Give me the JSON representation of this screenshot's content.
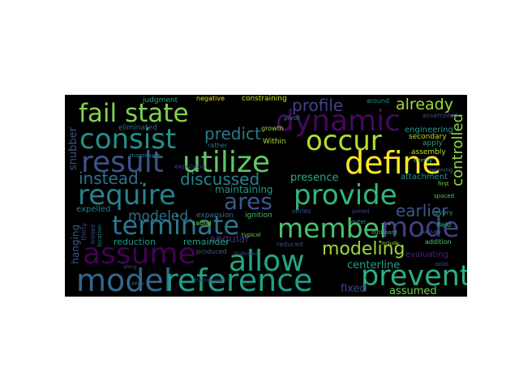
{
  "colors": {
    "page_background": "#ffffff",
    "cloud_background": "#000000"
  },
  "words": [
    {
      "text": "fail state",
      "color": "#7fd34e"
    },
    {
      "text": "dynamic",
      "color": "#46085c"
    },
    {
      "text": "consist",
      "color": "#21918c"
    },
    {
      "text": "occur",
      "color": "#b5de2b"
    },
    {
      "text": "result",
      "color": "#3b528b"
    },
    {
      "text": "utilize",
      "color": "#5ec962"
    },
    {
      "text": "define",
      "color": "#fde725"
    },
    {
      "text": "require",
      "color": "#26828e"
    },
    {
      "text": "provide",
      "color": "#35b779"
    },
    {
      "text": "terminate",
      "color": "#2a788e"
    },
    {
      "text": "member",
      "color": "#4ac16d"
    },
    {
      "text": "mode",
      "color": "#433e85"
    },
    {
      "text": "assume",
      "color": "#440154"
    },
    {
      "text": "allow",
      "color": "#22a884"
    },
    {
      "text": "model",
      "color": "#31688e"
    },
    {
      "text": "reference",
      "color": "#1f9e89"
    },
    {
      "text": "prevent",
      "color": "#2ab07f"
    },
    {
      "text": "ares",
      "color": "#39568c"
    },
    {
      "text": "modeling",
      "color": "#9fda3a"
    },
    {
      "text": "profile",
      "color": "#414487"
    },
    {
      "text": "already",
      "color": "#a0da39"
    },
    {
      "text": "predict",
      "color": "#287c8e"
    },
    {
      "text": "discussed",
      "color": "#25848e"
    },
    {
      "text": "instead.",
      "color": "#2c728e"
    },
    {
      "text": "earlier",
      "color": "#38598c"
    },
    {
      "text": "modeled.",
      "color": "#2d708e"
    },
    {
      "text": "controlled",
      "color": "#90d743"
    },
    {
      "text": "snubber",
      "color": "#3a548c"
    },
    {
      "text": "centerline",
      "color": "#1fa187"
    },
    {
      "text": "fixed",
      "color": "#3e4989"
    },
    {
      "text": "assumed",
      "color": "#6ccd5a"
    },
    {
      "text": "presence",
      "color": "#27ad81"
    },
    {
      "text": "angular",
      "color": "#482878"
    },
    {
      "text": "expelled",
      "color": "#26818e"
    },
    {
      "text": "reduction",
      "color": "#1e9b8a"
    },
    {
      "text": "remainder",
      "color": "#20a486"
    },
    {
      "text": "maintaining",
      "color": "#1f978b"
    },
    {
      "text": "hanging",
      "color": "#38588c"
    },
    {
      "text": "eliminated",
      "color": "#2f6c8e"
    },
    {
      "text": "expulsion",
      "color": "#433d84"
    },
    {
      "text": "expansion",
      "color": "#2b758e"
    },
    {
      "text": "ignition",
      "color": "#3dbc74"
    },
    {
      "text": "radial",
      "color": "#7ad151"
    },
    {
      "text": "attachment",
      "color": "#1f988b"
    },
    {
      "text": "engineering",
      "color": "#1e9c89"
    },
    {
      "text": "assembly",
      "color": "#bddf26"
    },
    {
      "text": "assembled",
      "color": "#3f4788"
    },
    {
      "text": "judgment",
      "color": "#22a785"
    },
    {
      "text": "negative",
      "color": "#dde318"
    },
    {
      "text": "constraining",
      "color": "#d2e21b"
    },
    {
      "text": "growth",
      "color": "#a2da37"
    },
    {
      "text": "pivot",
      "color": "#277f8e"
    },
    {
      "text": "Within",
      "color": "#a8db34"
    },
    {
      "text": "rather",
      "color": "#2a768e"
    },
    {
      "text": "series",
      "color": "#3b518b"
    },
    {
      "text": "apply",
      "color": "#1f9f88"
    },
    {
      "text": "evaluating",
      "color": "#482475"
    },
    {
      "text": "addition",
      "color": "#50c46a"
    },
    {
      "text": "reduced",
      "color": "#3d4e8a"
    },
    {
      "text": "produced",
      "color": "#34608d"
    },
    {
      "text": "maintained",
      "color": "#4b2991"
    },
    {
      "text": "typical",
      "color": "#6ece58"
    },
    {
      "text": "thirty",
      "color": "#404588"
    },
    {
      "text": "limited",
      "color": "#3a538b"
    },
    {
      "text": "location",
      "color": "#25838e"
    },
    {
      "text": "magnitude",
      "color": "#26828e"
    },
    {
      "text": "every",
      "color": "#1e9d89"
    },
    {
      "text": "field",
      "color": "#31b57b"
    },
    {
      "text": "axial",
      "color": "#404588"
    },
    {
      "text": "spaced",
      "color": "#52c569"
    },
    {
      "text": "joined",
      "color": "#3e4a89"
    },
    {
      "text": "outer",
      "color": "#1fa088"
    },
    {
      "text": "zero",
      "color": "#30678d"
    },
    {
      "text": "secondary",
      "color": "#b8de29"
    },
    {
      "text": "around",
      "color": "#21918c"
    },
    {
      "text": "illustrated",
      "color": "#3e4c8a"
    },
    {
      "text": "outboard",
      "color": "#29af7f"
    },
    {
      "text": "first",
      "color": "#7fd34e"
    },
    {
      "text": "along",
      "color": "#3f4889"
    },
    {
      "text": "evenly",
      "color": "#35b779"
    },
    {
      "text": "opening",
      "color": "#2c738e"
    },
    {
      "text": "include",
      "color": "#8bd646"
    },
    {
      "text": "exclude",
      "color": "#32658e"
    }
  ]
}
